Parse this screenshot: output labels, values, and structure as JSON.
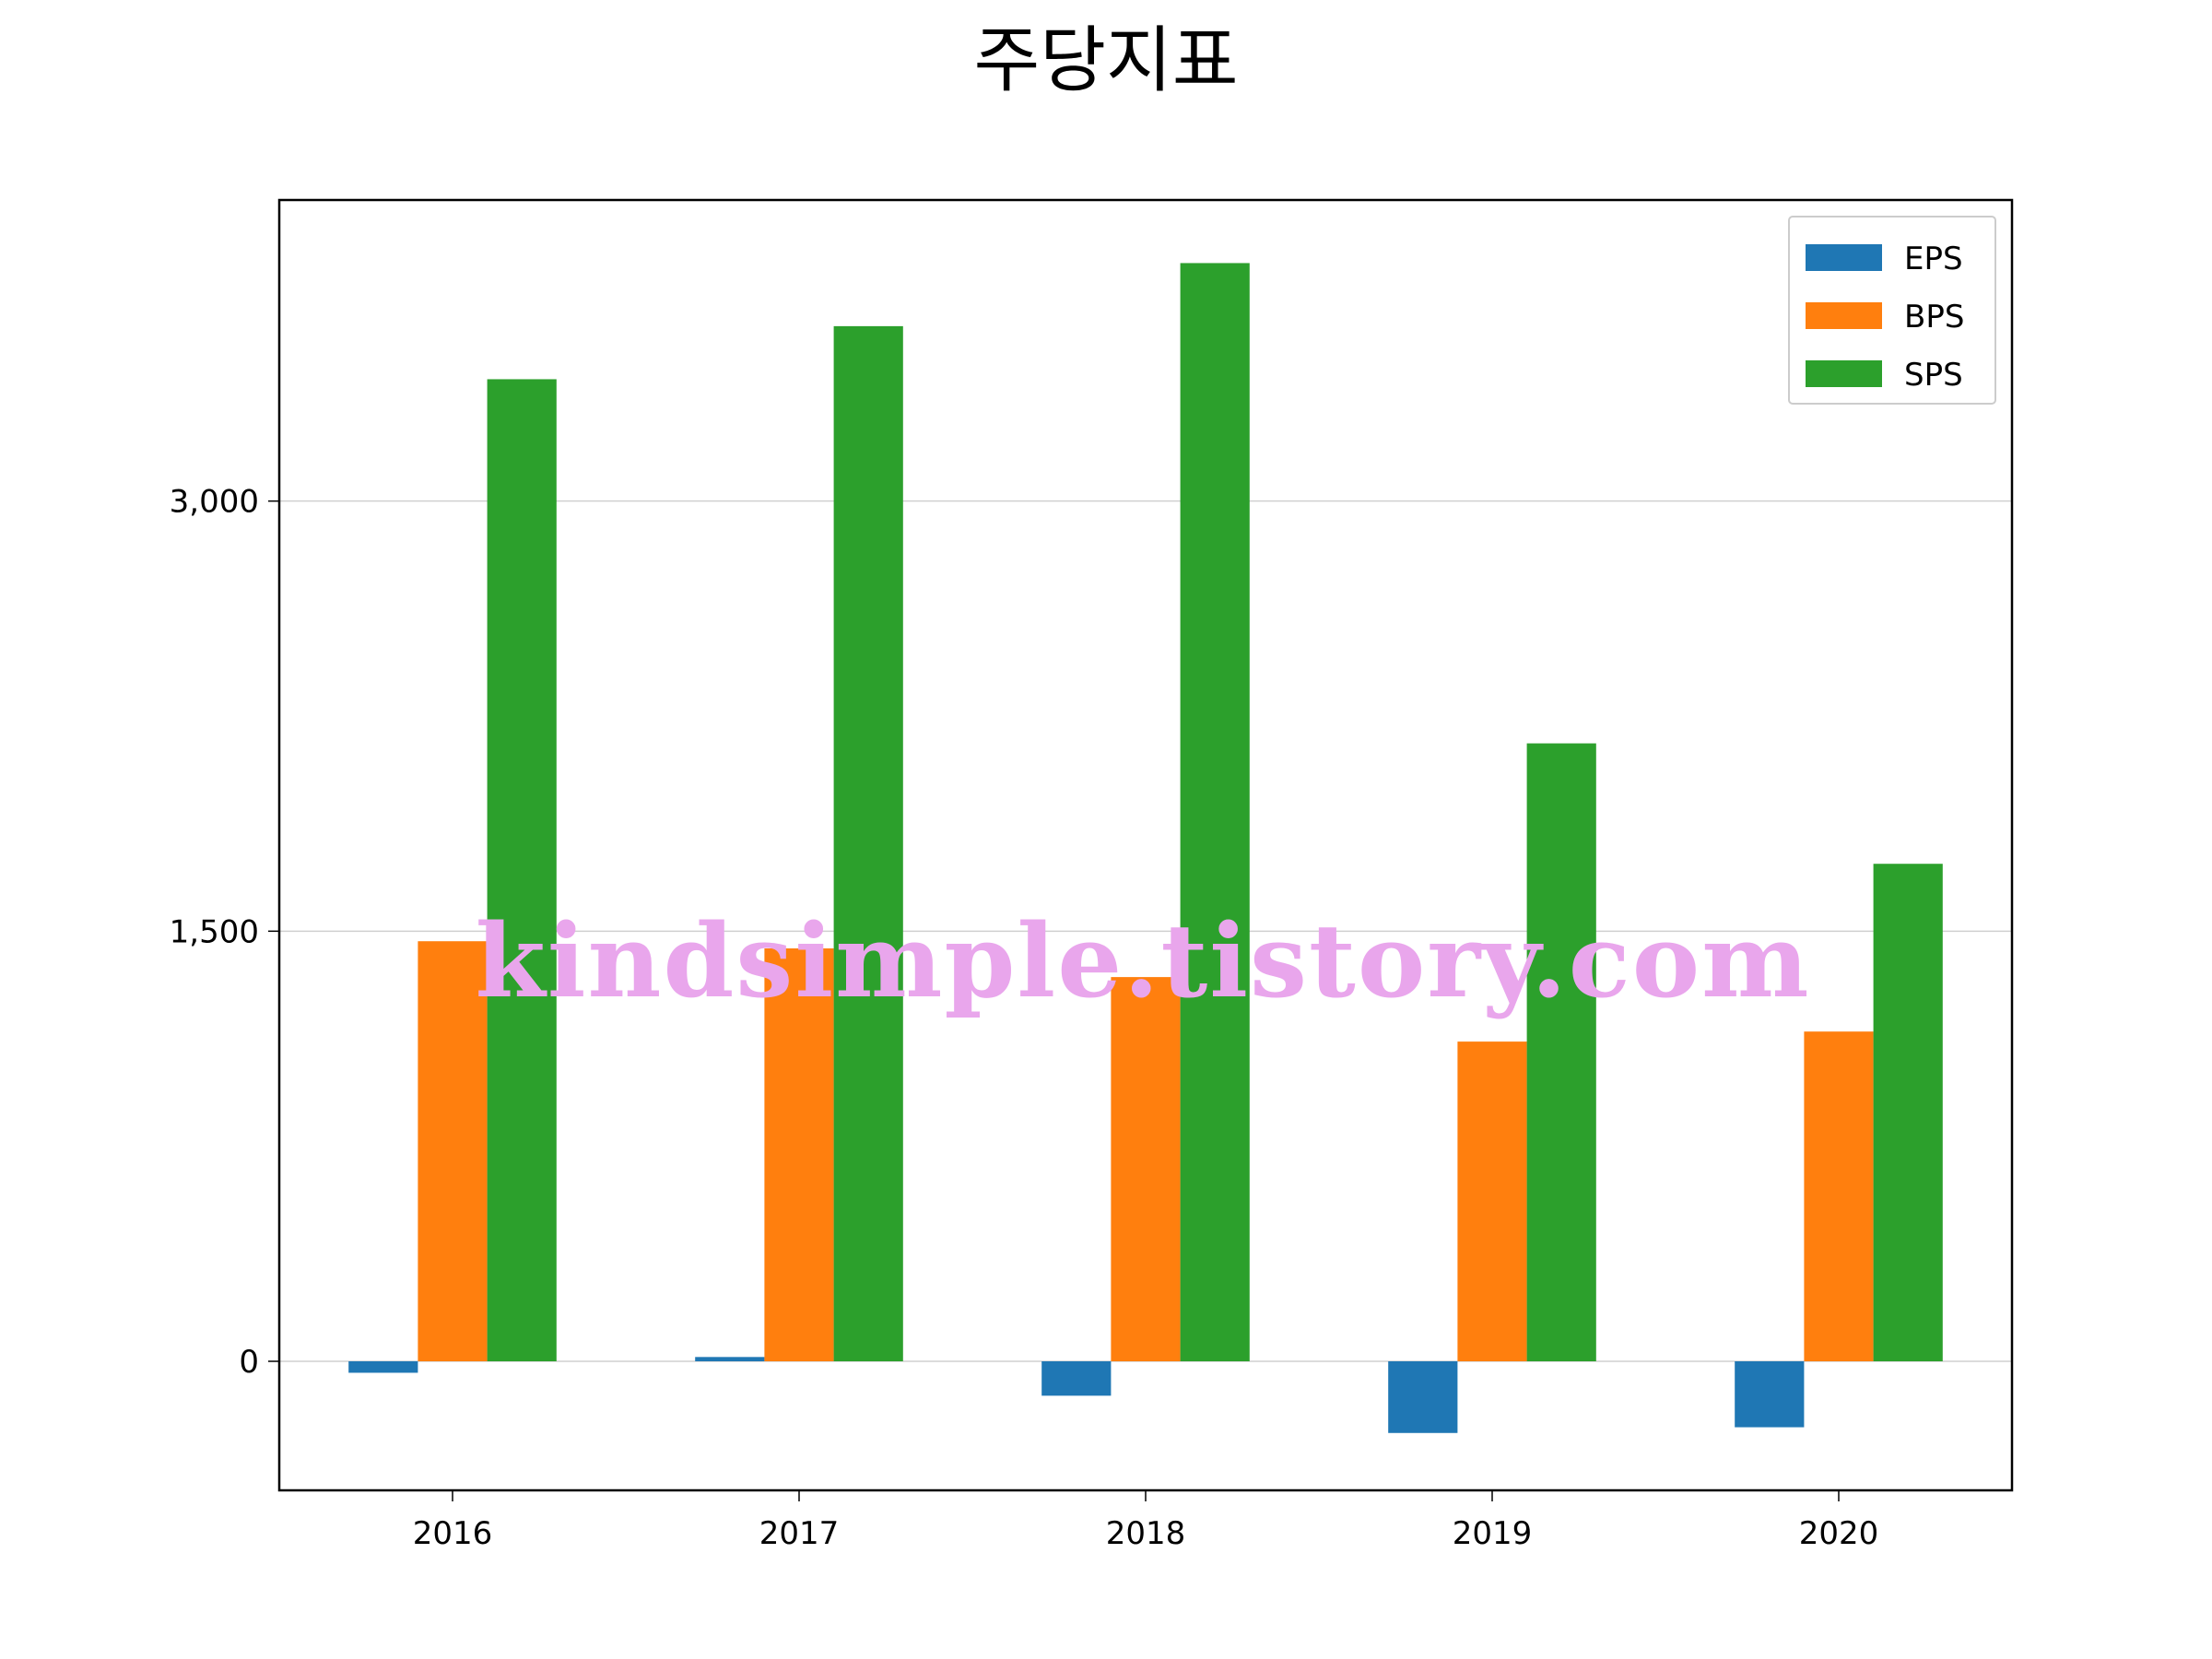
{
  "chart_data": {
    "type": "bar",
    "title": "주당지표",
    "xlabel": "",
    "ylabel": "",
    "categories": [
      "2016",
      "2017",
      "2018",
      "2019",
      "2020"
    ],
    "series": [
      {
        "name": "EPS",
        "color": "#1f77b4",
        "values": [
          -40,
          15,
          -120,
          -250,
          -230
        ]
      },
      {
        "name": "BPS",
        "color": "#ff7f0e",
        "values": [
          1465,
          1440,
          1340,
          1115,
          1150
        ]
      },
      {
        "name": "SPS",
        "color": "#2ca02c",
        "values": [
          3425,
          3610,
          3830,
          2155,
          1735
        ]
      }
    ],
    "ylim": [
      -450,
      4050
    ],
    "yticks": [
      0,
      1500,
      3000
    ],
    "ytick_labels": [
      "0",
      "1,500",
      "3,000"
    ],
    "grid": "y",
    "legend": "upper right",
    "watermark": "kindsimple.tistory.com"
  }
}
